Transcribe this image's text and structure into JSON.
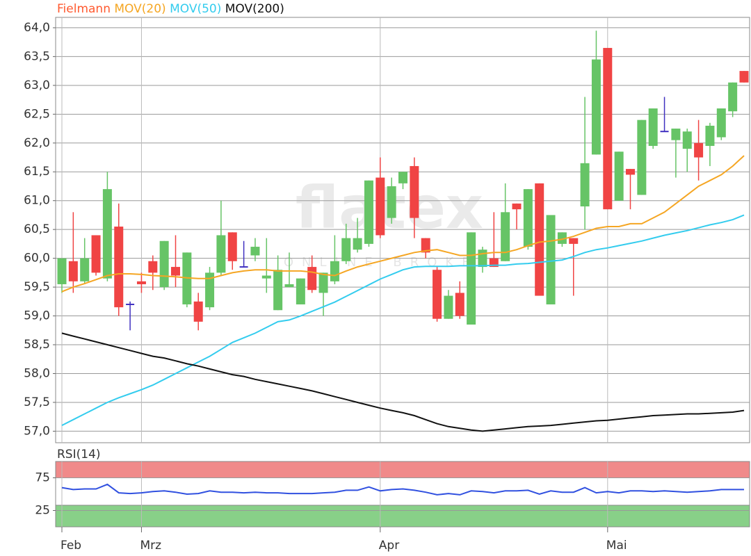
{
  "chart_data": [
    {
      "type": "candlestick",
      "watermark": "flatex",
      "watermark_sub": "ONLINE BROKER",
      "series": [
        {
          "name": "Fielmann",
          "color": "#ff5a30",
          "up_color": "#66c466",
          "down_color": "#f04444",
          "doji_color": "#4030c0",
          "open": [
            59.55,
            59.95,
            59.6,
            60.4,
            59.65,
            60.55,
            59.2,
            59.6,
            59.95,
            59.5,
            59.85,
            59.2,
            59.25,
            59.15,
            59.75,
            60.45,
            59.85,
            60.05,
            59.65,
            59.1,
            59.5,
            59.2,
            59.85,
            59.4,
            59.6,
            59.95,
            60.15,
            60.25,
            61.4,
            60.7,
            61.3,
            61.6,
            60.35,
            59.8,
            58.95,
            59.4,
            58.85,
            59.85,
            60.0,
            59.95,
            60.95,
            60.2,
            61.3,
            59.2,
            60.25,
            60.35,
            60.9,
            61.8,
            63.65,
            61.0,
            61.55,
            61.1,
            61.95,
            62.2,
            62.05,
            61.9,
            62.0,
            61.95,
            62.1,
            62.55,
            63.25
          ],
          "high": [
            60.0,
            60.8,
            60.35,
            60.4,
            61.5,
            60.95,
            59.25,
            59.75,
            60.05,
            60.3,
            60.4,
            60.1,
            59.4,
            59.85,
            61.0,
            60.45,
            60.3,
            60.35,
            60.35,
            60.05,
            60.1,
            59.65,
            60.05,
            59.75,
            60.4,
            60.6,
            60.7,
            61.35,
            61.75,
            61.4,
            61.5,
            61.75,
            60.35,
            59.85,
            59.45,
            59.6,
            60.45,
            60.2,
            60.8,
            61.3,
            60.95,
            61.2,
            61.3,
            60.75,
            60.45,
            60.35,
            62.8,
            63.95,
            63.65,
            61.85,
            61.55,
            62.4,
            62.6,
            62.8,
            62.25,
            62.25,
            62.4,
            62.35,
            62.6,
            63.05,
            63.25
          ],
          "low": [
            59.4,
            59.4,
            59.55,
            59.7,
            59.6,
            59.0,
            58.75,
            59.4,
            59.45,
            59.45,
            59.5,
            59.15,
            58.75,
            59.1,
            59.7,
            59.8,
            59.85,
            59.95,
            59.4,
            59.1,
            59.5,
            59.2,
            59.4,
            59.0,
            59.55,
            59.9,
            60.1,
            60.2,
            60.35,
            60.6,
            61.2,
            60.35,
            60.0,
            58.9,
            58.95,
            58.95,
            58.85,
            59.75,
            59.85,
            59.95,
            60.5,
            60.15,
            59.35,
            59.2,
            60.2,
            59.35,
            60.5,
            61.8,
            60.85,
            61.0,
            60.85,
            61.1,
            61.9,
            62.2,
            61.4,
            61.5,
            61.35,
            61.6,
            62.05,
            62.45,
            63.05
          ],
          "close": [
            60.0,
            59.6,
            60.0,
            59.75,
            61.2,
            59.15,
            59.2,
            59.55,
            59.75,
            60.3,
            59.7,
            60.1,
            58.9,
            59.75,
            60.4,
            59.95,
            59.85,
            60.2,
            59.7,
            59.8,
            59.55,
            59.65,
            59.45,
            59.75,
            59.95,
            60.35,
            60.35,
            61.35,
            60.4,
            61.25,
            61.5,
            60.7,
            60.1,
            58.95,
            59.35,
            59.0,
            60.45,
            60.15,
            59.85,
            60.8,
            60.85,
            61.2,
            59.35,
            60.75,
            60.45,
            60.25,
            61.65,
            63.45,
            60.85,
            61.85,
            61.45,
            62.4,
            62.6,
            62.2,
            62.25,
            62.2,
            61.75,
            62.3,
            62.6,
            63.05,
            63.05
          ]
        },
        {
          "name": "MOV(20)",
          "color": "#f5a623",
          "values": [
            59.42,
            59.5,
            59.56,
            59.63,
            59.7,
            59.73,
            59.73,
            59.72,
            59.7,
            59.69,
            59.68,
            59.66,
            59.65,
            59.65,
            59.7,
            59.75,
            59.78,
            59.8,
            59.8,
            59.78,
            59.78,
            59.78,
            59.76,
            59.72,
            59.7,
            59.78,
            59.85,
            59.9,
            59.95,
            60.0,
            60.05,
            60.1,
            60.13,
            60.15,
            60.1,
            60.05,
            60.05,
            60.08,
            60.1,
            60.1,
            60.15,
            60.22,
            60.28,
            60.3,
            60.33,
            60.38,
            60.45,
            60.52,
            60.55,
            60.55,
            60.6,
            60.6,
            60.7,
            60.8,
            60.95,
            61.1,
            61.25,
            61.35,
            61.45,
            61.6,
            61.78
          ]
        },
        {
          "name": "MOV(50)",
          "color": "#33ccee",
          "values": [
            57.1,
            57.2,
            57.3,
            57.4,
            57.5,
            57.58,
            57.65,
            57.72,
            57.8,
            57.9,
            58.0,
            58.1,
            58.2,
            58.3,
            58.42,
            58.54,
            58.62,
            58.7,
            58.8,
            58.9,
            58.93,
            59.0,
            59.08,
            59.16,
            59.24,
            59.34,
            59.44,
            59.54,
            59.64,
            59.72,
            59.8,
            59.85,
            59.86,
            59.86,
            59.86,
            59.87,
            59.87,
            59.87,
            59.88,
            59.88,
            59.9,
            59.91,
            59.93,
            59.95,
            59.97,
            60.03,
            60.1,
            60.15,
            60.18,
            60.22,
            60.26,
            60.3,
            60.35,
            60.4,
            60.44,
            60.48,
            60.53,
            60.58,
            60.62,
            60.67,
            60.75
          ]
        },
        {
          "name": "MOV(200)",
          "color": "#111111",
          "values": [
            58.7,
            58.65,
            58.6,
            58.55,
            58.5,
            58.45,
            58.4,
            58.35,
            58.3,
            58.27,
            58.22,
            58.17,
            58.13,
            58.08,
            58.03,
            57.98,
            57.95,
            57.9,
            57.86,
            57.82,
            57.78,
            57.74,
            57.7,
            57.65,
            57.6,
            57.55,
            57.5,
            57.45,
            57.4,
            57.36,
            57.32,
            57.27,
            57.2,
            57.13,
            57.08,
            57.05,
            57.02,
            57.0,
            57.02,
            57.04,
            57.06,
            57.08,
            57.09,
            57.1,
            57.12,
            57.14,
            57.16,
            57.18,
            57.19,
            57.21,
            57.23,
            57.25,
            57.27,
            57.28,
            57.29,
            57.3,
            57.3,
            57.31,
            57.32,
            57.33,
            57.36
          ]
        }
      ],
      "ylim": [
        56.8,
        64.18
      ],
      "yticks": [
        {
          "value": 57,
          "label": "57,0"
        },
        {
          "value": 57.5,
          "label": "57,5"
        },
        {
          "value": 58,
          "label": "58,0"
        },
        {
          "value": 58.5,
          "label": "58,5"
        },
        {
          "value": 59,
          "label": "59,0"
        },
        {
          "value": 59.5,
          "label": "59,5"
        },
        {
          "value": 60,
          "label": "60,0"
        },
        {
          "value": 60.5,
          "label": "60,5"
        },
        {
          "value": 61,
          "label": "61,0"
        },
        {
          "value": 61.5,
          "label": "61,5"
        },
        {
          "value": 62,
          "label": "62,0"
        },
        {
          "value": 62.5,
          "label": "62,5"
        },
        {
          "value": 63,
          "label": "63,0"
        },
        {
          "value": 63.5,
          "label": "63,5"
        },
        {
          "value": 64,
          "label": "64,0"
        }
      ],
      "grid": true
    },
    {
      "type": "line",
      "title": "RSI(14)",
      "title_color": "#2030d0",
      "categories": [
        "Feb",
        null,
        null,
        null,
        null,
        null,
        null,
        "Mrz",
        null,
        null,
        null,
        null,
        null,
        null,
        null,
        null,
        null,
        null,
        null,
        null,
        null,
        null,
        null,
        null,
        null,
        null,
        null,
        null,
        "Apr",
        null,
        null,
        null,
        null,
        null,
        null,
        null,
        null,
        null,
        null,
        null,
        null,
        null,
        null,
        null,
        null,
        null,
        null,
        null,
        "Mai",
        null,
        null,
        null,
        null,
        null,
        null,
        null,
        null,
        null,
        null,
        null,
        null
      ],
      "series": [
        {
          "name": "RSI(14)",
          "color": "#3050e0",
          "values": [
            60,
            57,
            58,
            58,
            65,
            52,
            51,
            52,
            54,
            55,
            53,
            50,
            51,
            55,
            53,
            53,
            52,
            53,
            52,
            52,
            51,
            51,
            51,
            52,
            53,
            56,
            56,
            61,
            55,
            57,
            58,
            56,
            53,
            49,
            51,
            49,
            55,
            54,
            52,
            55,
            55,
            56,
            50,
            55,
            53,
            53,
            60,
            52,
            54,
            52,
            55,
            55,
            54,
            55,
            54,
            53,
            54,
            55,
            57,
            57,
            57
          ]
        }
      ],
      "bands": [
        {
          "from": 75,
          "to": 100,
          "color": "#f08a8a"
        },
        {
          "from": 0,
          "to": 33,
          "color": "#88d088"
        }
      ],
      "ylim": [
        0,
        100
      ],
      "yticks": [
        25,
        75
      ],
      "grid": true
    }
  ]
}
